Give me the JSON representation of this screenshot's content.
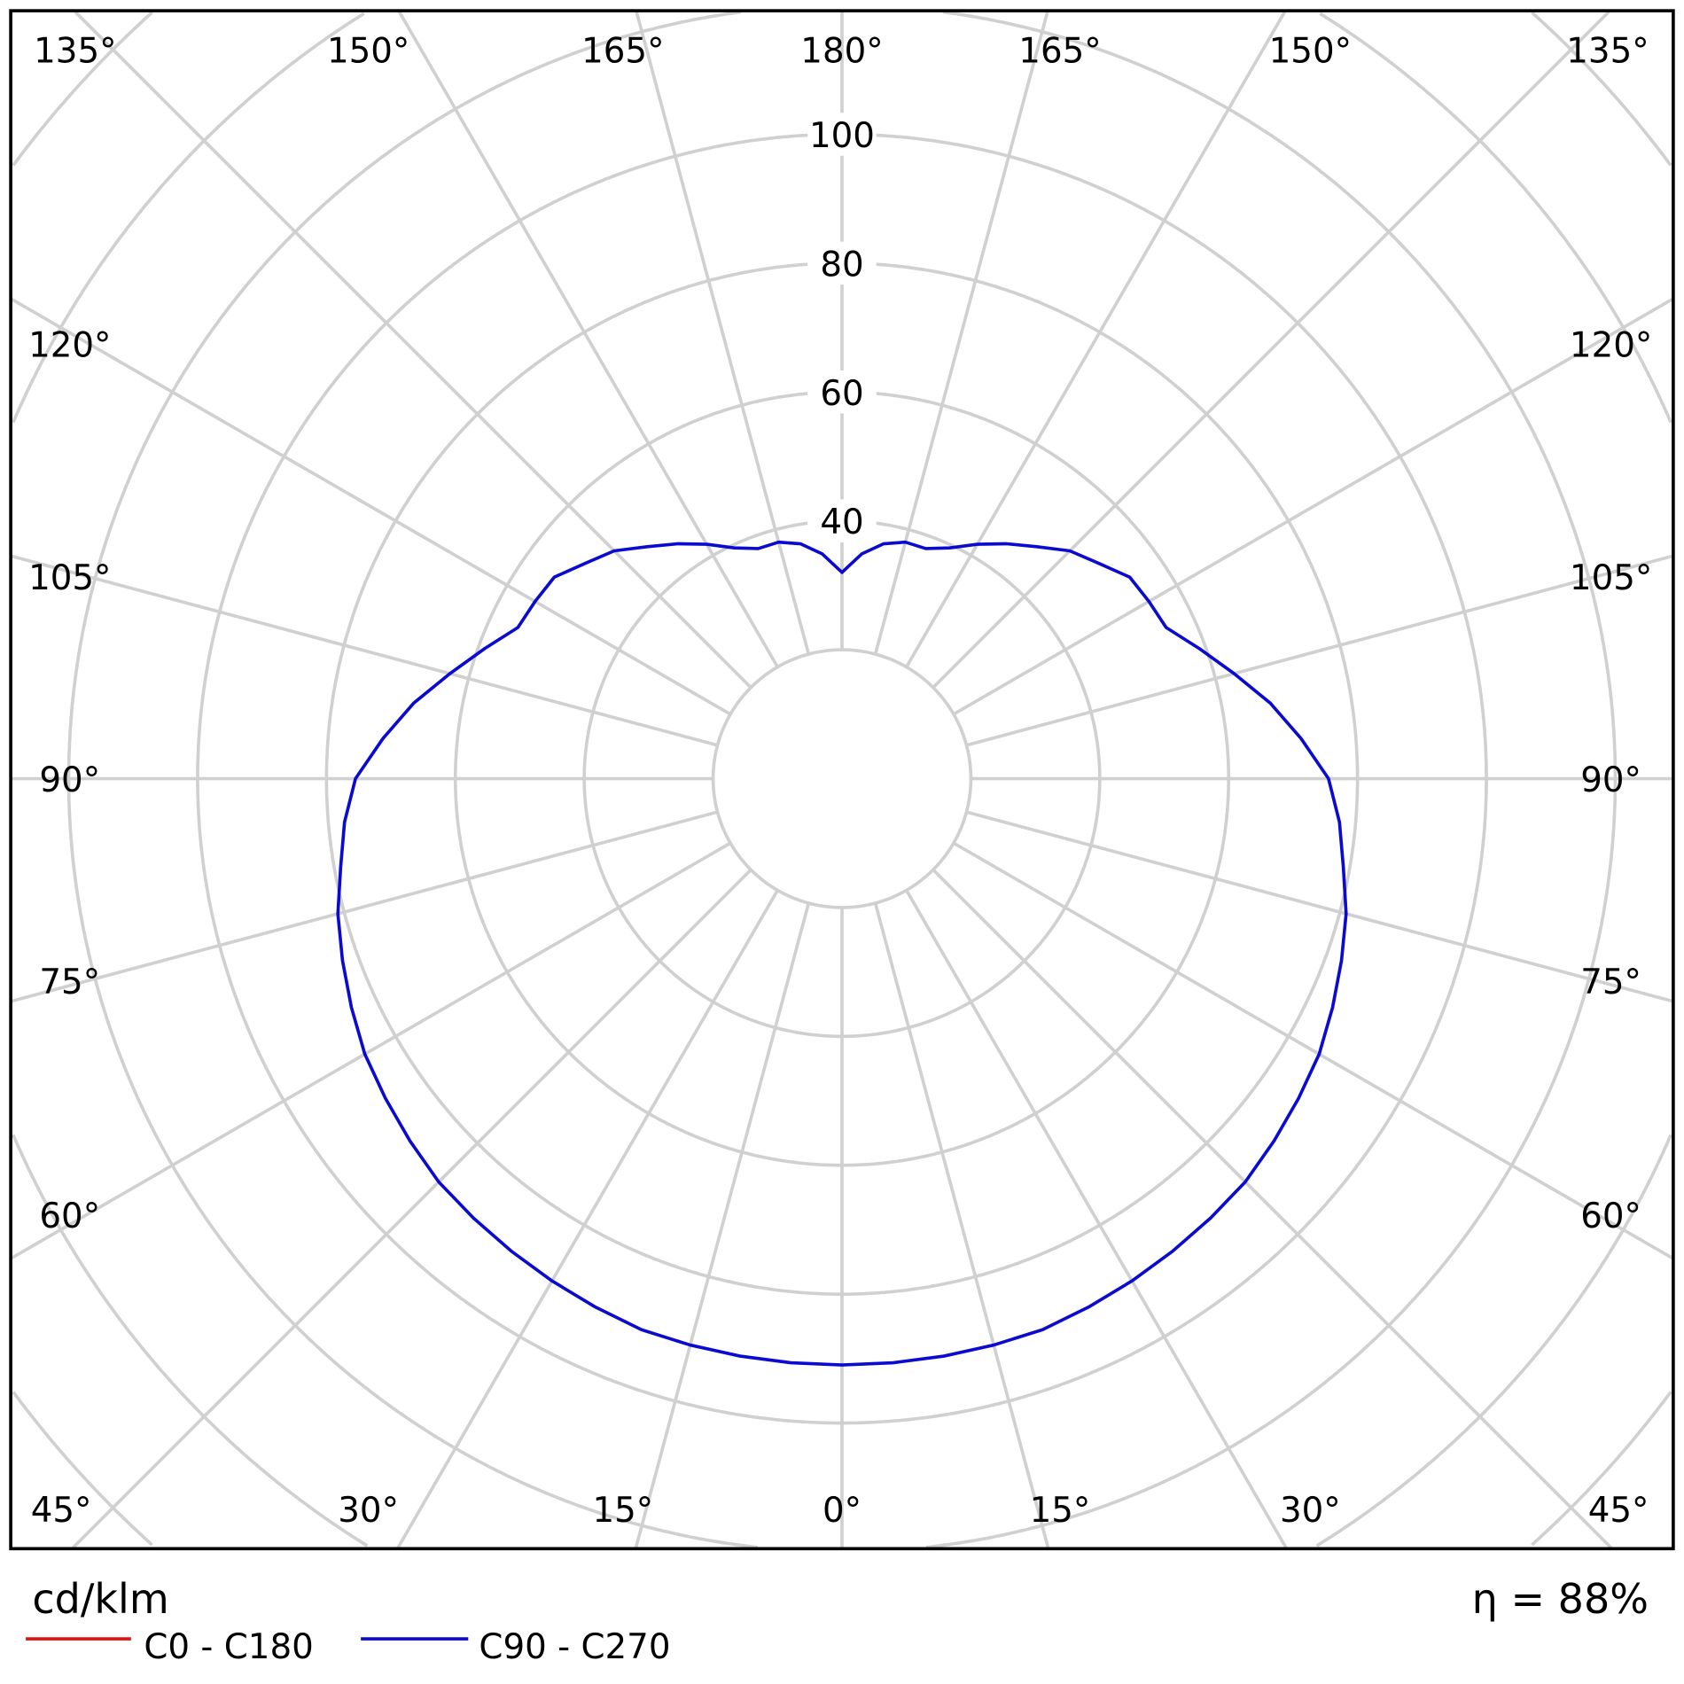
{
  "chart_data": {
    "type": "polar",
    "unit_label": "cd/klm",
    "efficiency_label": "η = 88%",
    "radial_ticks": [
      40,
      60,
      80,
      100
    ],
    "radial_grid": [
      20,
      40,
      60,
      80,
      100,
      120,
      140,
      160
    ],
    "angle_step_deg": 15,
    "angle_labels": {
      "top": [
        "135°",
        "150°",
        "165°",
        "180°",
        "165°",
        "150°",
        "135°"
      ],
      "left": [
        "120°",
        "105°",
        "90°",
        "75°",
        "60°"
      ],
      "right": [
        "120°",
        "105°",
        "90°",
        "75°",
        "60°"
      ],
      "bottom": [
        "45°",
        "30°",
        "15°",
        "0°",
        "15°",
        "30°",
        "45°"
      ]
    },
    "grid": true,
    "legend_position": "bottom-left",
    "series": [
      {
        "name": "C0 - C180",
        "color": "#e01010",
        "angles": [],
        "values": []
      },
      {
        "name": "C90 - C270",
        "color": "#0a0ad0",
        "angles": [
          0,
          5,
          10,
          15,
          20,
          25,
          30,
          35,
          40,
          45,
          50,
          55,
          60,
          65,
          70,
          75,
          80,
          85,
          90,
          95,
          100,
          105,
          110,
          115,
          120,
          125,
          130,
          135,
          140,
          145,
          150,
          155,
          160,
          165,
          170,
          175,
          180
        ],
        "values": [
          91,
          91,
          91,
          91,
          91,
          90.5,
          90,
          89.5,
          89,
          88.5,
          87.5,
          86.5,
          85.5,
          84,
          82.5,
          81,
          79,
          77.5,
          75.5,
          71.5,
          67.5,
          63,
          59,
          55.5,
          55,
          54.5,
          52,
          50,
          47,
          44.5,
          42,
          39.5,
          38,
          38,
          37,
          35,
          32
        ]
      }
    ]
  }
}
